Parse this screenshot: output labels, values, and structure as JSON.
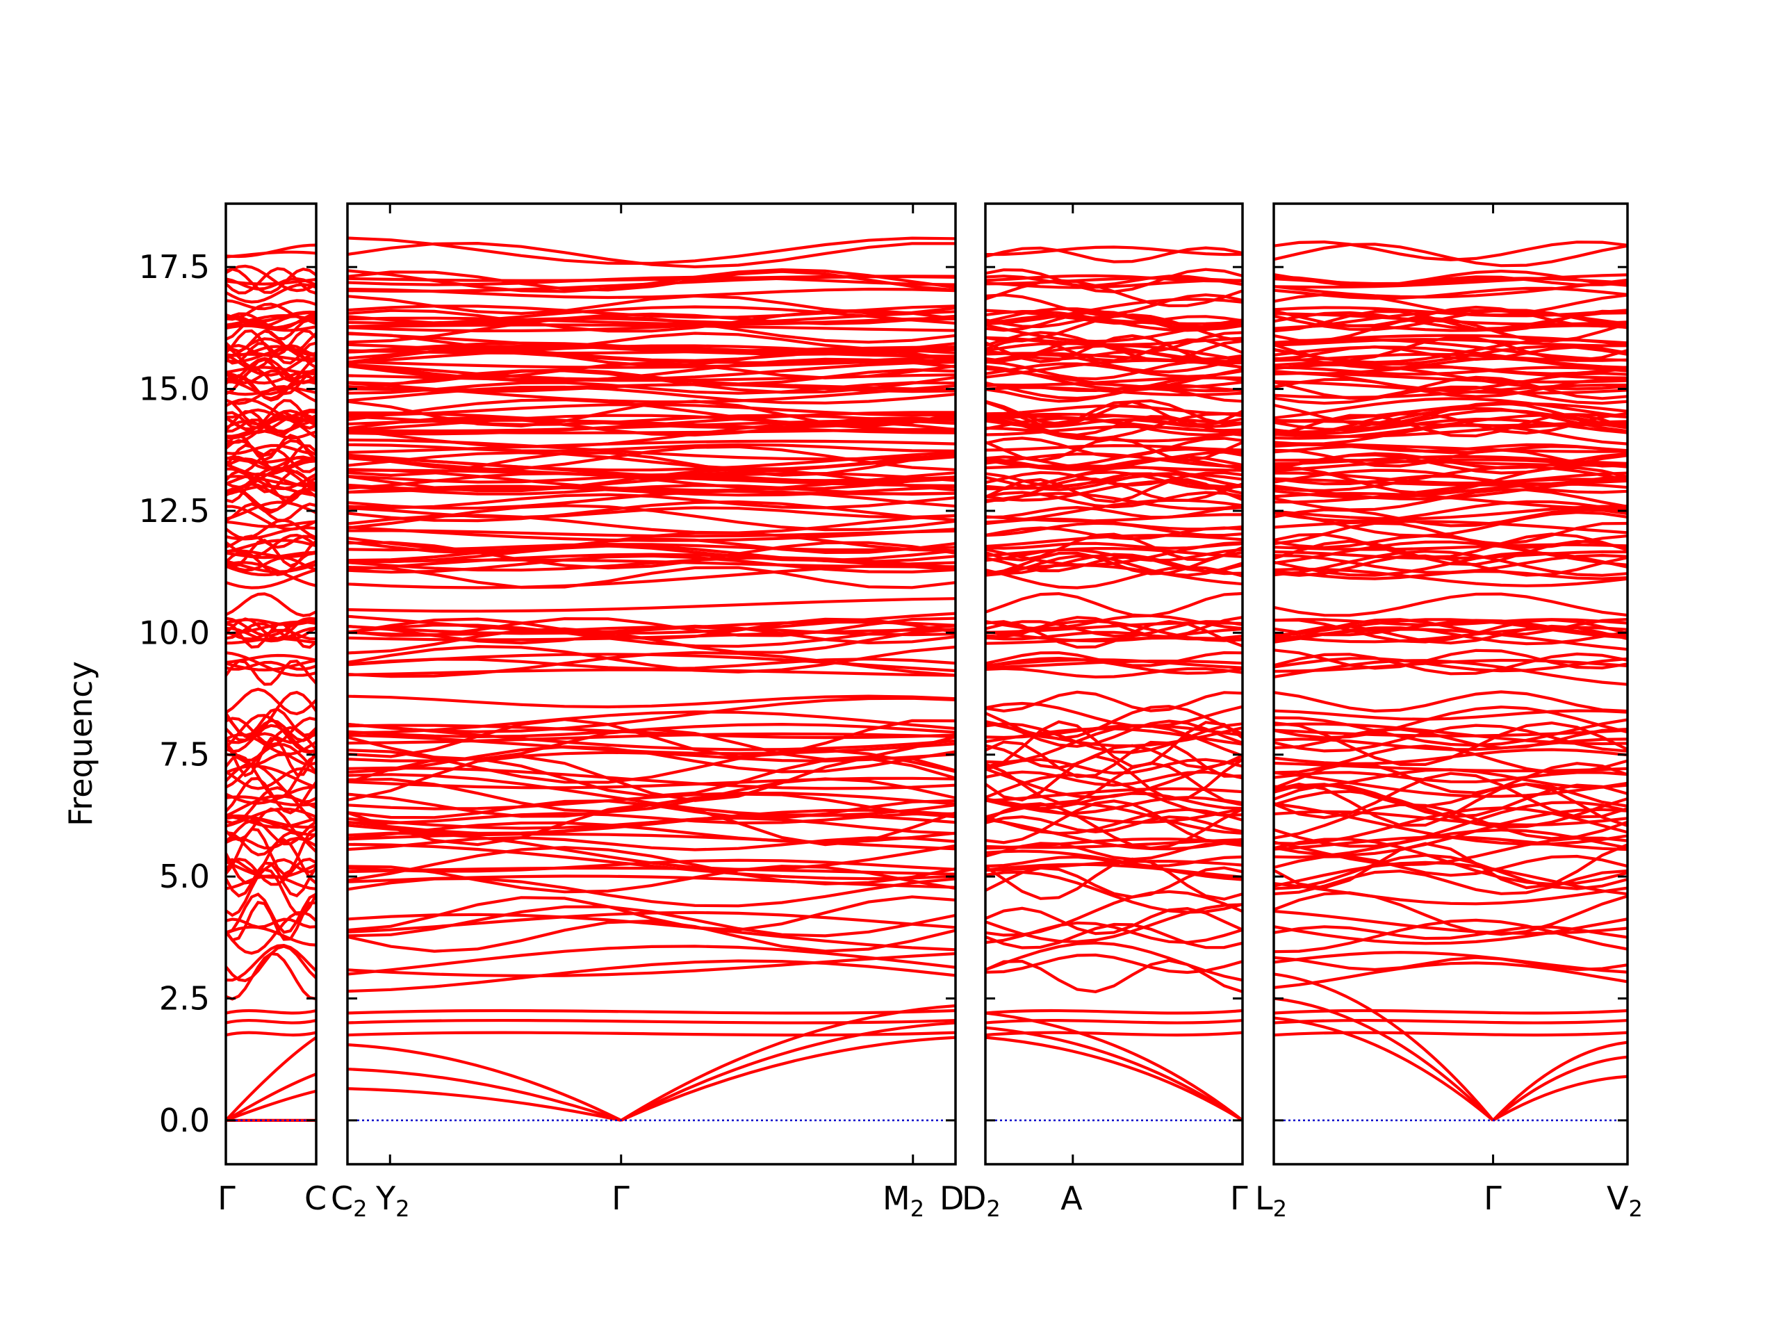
{
  "chart_data": {
    "type": "line",
    "ylabel": "Frequency",
    "ylim": [
      -0.9,
      18.8
    ],
    "yticks": [
      "0.0",
      "2.5",
      "5.0",
      "7.5",
      "10.0",
      "12.5",
      "15.0",
      "17.5"
    ],
    "ytick_values": [
      0.0,
      2.5,
      5.0,
      7.5,
      10.0,
      12.5,
      15.0,
      17.5
    ],
    "band_color": "#ff0000",
    "zero_line_color": "#0000cc",
    "zero_line_style": "dotted",
    "grid": false,
    "panels": [
      {
        "x_range": [
          0,
          1
        ],
        "tick_positions": [
          0,
          1
        ],
        "tick_labels": [
          {
            "base": "Γ",
            "sub": ""
          },
          {
            "base": "C",
            "sub": ""
          }
        ],
        "acoustic_ends": [
          0.0,
          1.7,
          0.95,
          0.6
        ],
        "low_optical": [
          1.75,
          2.0,
          2.2
        ]
      },
      {
        "x_range": [
          0,
          1
        ],
        "tick_positions": [
          0.07,
          0.45,
          0.93
        ],
        "tick_labels": [
          {
            "base": "C",
            "sub": "2"
          },
          {
            "base": "Y",
            "sub": "2"
          },
          {
            "base": "Γ",
            "sub": ""
          },
          {
            "base": "M",
            "sub": "2"
          },
          {
            "base": "D",
            "sub": ""
          }
        ],
        "gamma_position": 0.45,
        "acoustic_left_ends": [
          0.65,
          1.05,
          1.55
        ],
        "acoustic_right_ends": [
          1.7,
          2.0,
          2.35
        ],
        "low_optical": [
          1.75,
          2.0,
          2.2
        ]
      },
      {
        "x_range": [
          0,
          1
        ],
        "tick_positions": [
          0.34
        ],
        "tick_labels": [
          {
            "base": "D",
            "sub": "2"
          },
          {
            "base": "A",
            "sub": ""
          },
          {
            "base": "Γ",
            "sub": ""
          }
        ],
        "acoustic_left_ends": [
          1.7,
          1.9,
          2.2
        ],
        "low_optical": [
          1.75,
          2.0,
          2.2
        ]
      },
      {
        "x_range": [
          0,
          1
        ],
        "tick_positions": [
          0.62
        ],
        "tick_labels": [
          {
            "base": "L",
            "sub": "2"
          },
          {
            "base": "Γ",
            "sub": ""
          },
          {
            "base": "V",
            "sub": "2"
          }
        ],
        "gamma_position": 0.62,
        "acoustic_left_ends": [
          2.1,
          2.5,
          3.0
        ],
        "acoustic_right_ends": [
          0.9,
          1.3,
          1.6
        ],
        "low_optical": [
          1.75,
          2.0,
          2.2
        ]
      }
    ],
    "optical_band_count": 150,
    "optical_band_range": [
      2.3,
      17.9
    ]
  }
}
